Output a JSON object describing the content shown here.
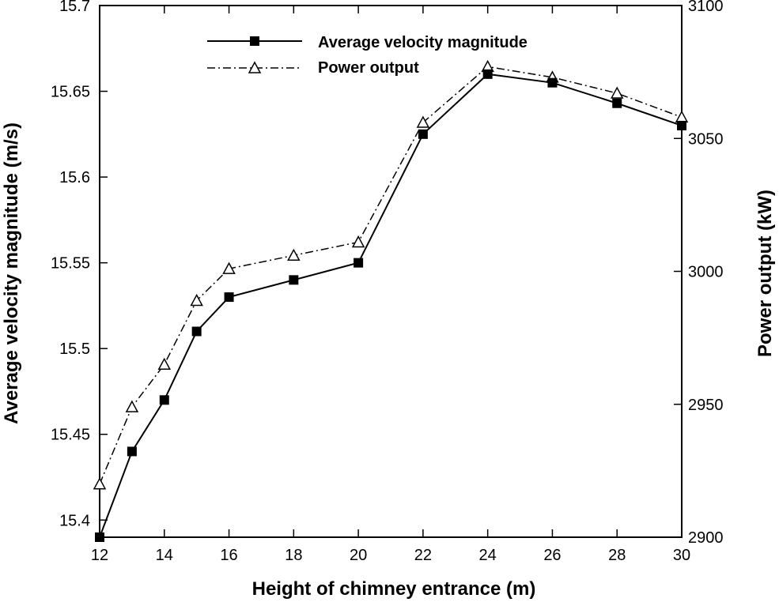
{
  "chart_data": {
    "type": "line",
    "x": [
      12,
      13,
      14,
      15,
      16,
      18,
      20,
      22,
      24,
      26,
      28,
      30
    ],
    "xlabel": "Height of chimney entrance (m)",
    "ylabel": "Average velocity magnitude (m/s)",
    "y2label": "Power output (kW)",
    "x_ticks": [
      12,
      14,
      16,
      18,
      20,
      22,
      24,
      26,
      28,
      30
    ],
    "y_ticks": [
      "15.4",
      "15.45",
      "15.5",
      "15.55",
      "15.6",
      "15.65",
      "15.7"
    ],
    "y2_ticks": [
      "2900",
      "2950",
      "3000",
      "3050",
      "3100"
    ],
    "xlim": [
      12,
      30
    ],
    "ylim": [
      15.39,
      15.7
    ],
    "y2lim": [
      2900,
      3100
    ],
    "grid": false,
    "legend_position": "top-center",
    "series": [
      {
        "name": "Average velocity magnitude",
        "axis": "left",
        "marker": "filled-square",
        "line": "solid",
        "values": [
          15.39,
          15.44,
          15.47,
          15.51,
          15.53,
          15.54,
          15.55,
          15.625,
          15.66,
          15.655,
          15.643,
          15.63
        ]
      },
      {
        "name": "Power output",
        "axis": "right",
        "marker": "open-triangle",
        "line": "dash-dot",
        "values": [
          2920,
          2949,
          2965,
          2989,
          3001,
          3006,
          3011,
          3056,
          3077,
          3073,
          3067,
          3058
        ]
      }
    ]
  }
}
